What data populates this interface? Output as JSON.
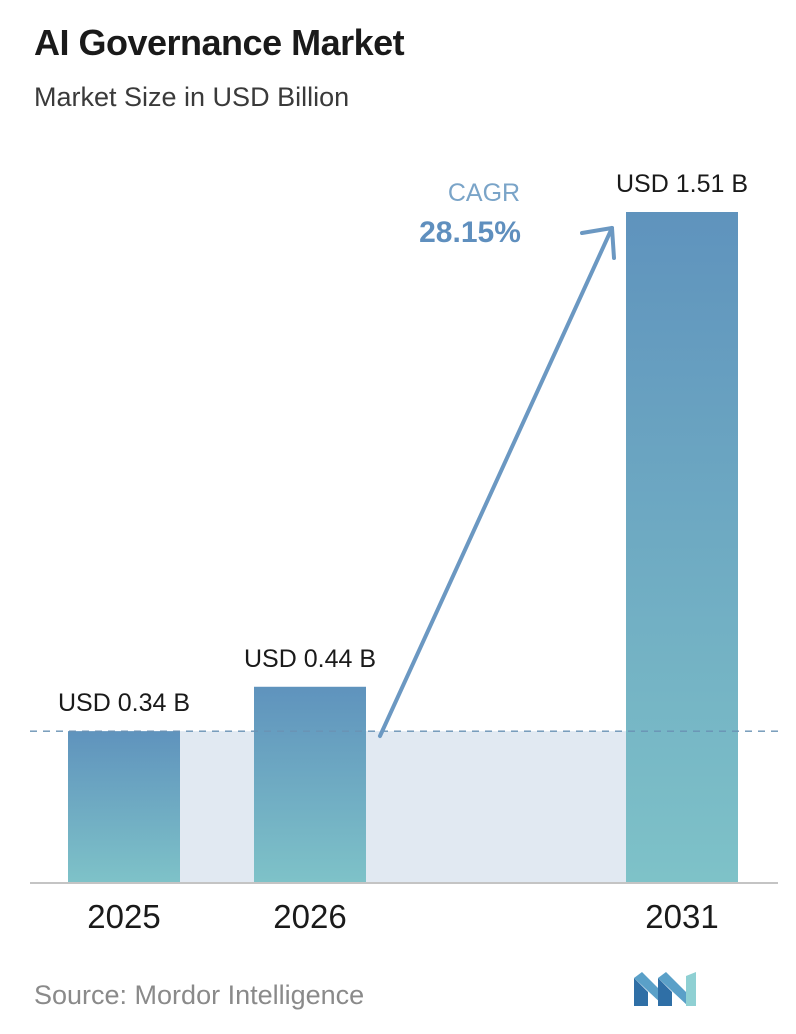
{
  "title": "AI Governance Market",
  "subtitle": "Market Size in USD Billion",
  "source": "Source:  Mordor Intelligence",
  "logo_name": "mordor-intelligence-logo",
  "chart_data": {
    "type": "bar",
    "categories": [
      "2025",
      "2026",
      "2031"
    ],
    "values": [
      0.34,
      0.44,
      1.51
    ],
    "data_labels": [
      "USD 0.34 B",
      "USD 0.44 B",
      "USD 1.51 B"
    ],
    "ylim": [
      0,
      1.51
    ],
    "reference_line_value": 0.34,
    "grid": false,
    "annotation": {
      "label": "CAGR",
      "value": "28.15%"
    }
  },
  "colors": {
    "bar_top": "#5f93bd",
    "bar_bottom": "#7ec2c8",
    "band": "#e1e9f2",
    "arrow": "#6b98c2",
    "cagr_label": "#7aa4c8",
    "cagr_value": "#5f8fbe",
    "dashed_line": "#6a92b4",
    "axis": "#c4c4c4"
  }
}
